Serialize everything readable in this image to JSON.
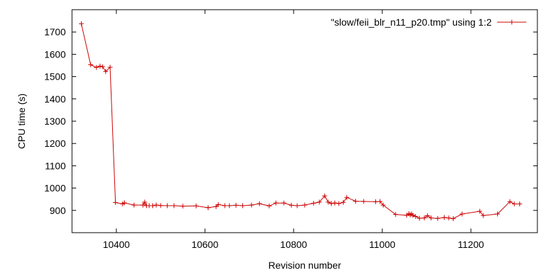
{
  "chart_data": {
    "type": "line",
    "title": "",
    "xlabel": "Revision number",
    "ylabel": "CPU time (s)",
    "xlim": [
      10300,
      11350
    ],
    "ylim": [
      800,
      1800
    ],
    "x_ticks": [
      10400,
      10600,
      10800,
      11000,
      11200
    ],
    "y_ticks": [
      900,
      1000,
      1100,
      1200,
      1300,
      1400,
      1500,
      1600,
      1700
    ],
    "grid": false,
    "legend_position": "top-right",
    "series": [
      {
        "name": "\"slow/feii_blr_n11_p20.tmp\" using 1:2",
        "color": "#cc0000",
        "marker": "plus",
        "x": [
          10321,
          10342,
          10355,
          10363,
          10369,
          10376,
          10386,
          10398,
          10414,
          10418,
          10440,
          10460,
          10464,
          10468,
          10474,
          10482,
          10490,
          10500,
          10515,
          10530,
          10550,
          10580,
          10607,
          10625,
          10630,
          10645,
          10655,
          10670,
          10685,
          10705,
          10723,
          10745,
          10760,
          10778,
          10795,
          10808,
          10825,
          10845,
          10858,
          10870,
          10878,
          10885,
          10893,
          10902,
          10912,
          10920,
          10940,
          10958,
          10985,
          10995,
          11002,
          11030,
          11055,
          11060,
          11063,
          11066,
          11069,
          11075,
          11084,
          11095,
          11102,
          11110,
          11125,
          11140,
          11150,
          11160,
          11180,
          11220,
          11228,
          11260,
          11288,
          11298,
          11310
        ],
        "y": [
          1737,
          1553,
          1541,
          1547,
          1544,
          1523,
          1542,
          935,
          929,
          934,
          924,
          924,
          937,
          921,
          921,
          921,
          924,
          922,
          921,
          921,
          919,
          920,
          912,
          917,
          926,
          921,
          921,
          923,
          921,
          924,
          930,
          920,
          933,
          933,
          923,
          921,
          924,
          932,
          937,
          965,
          937,
          931,
          933,
          931,
          936,
          958,
          941,
          940,
          939,
          940,
          924,
          882,
          878,
          885,
          880,
          884,
          878,
          873,
          865,
          866,
          876,
          866,
          864,
          868,
          866,
          863,
          884,
          896,
          877,
          884,
          939,
          929,
          929
        ]
      }
    ]
  }
}
